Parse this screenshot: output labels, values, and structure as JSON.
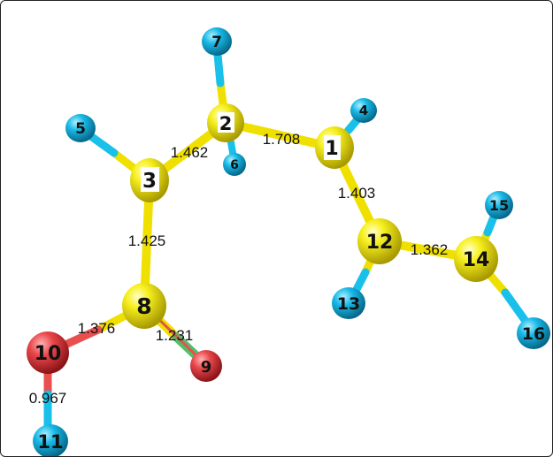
{
  "colors": {
    "carbon": "#f2ea12",
    "hydrogen": "#18b8e6",
    "oxygen": "#e8464a",
    "bond_c_c": "#f0e000",
    "bond_c_h": "#19c0ea",
    "bond_c_o_double": "#4fc06a",
    "bond_o_h": "#e85050"
  },
  "atoms": [
    {
      "id": "1",
      "element": "C",
      "label": "1"
    },
    {
      "id": "2",
      "element": "C",
      "label": "2"
    },
    {
      "id": "3",
      "element": "C",
      "label": "3"
    },
    {
      "id": "4",
      "element": "H",
      "label": "4"
    },
    {
      "id": "5",
      "element": "H",
      "label": "5"
    },
    {
      "id": "6",
      "element": "H",
      "label": "6"
    },
    {
      "id": "7",
      "element": "H",
      "label": "7"
    },
    {
      "id": "8",
      "element": "C",
      "label": "8"
    },
    {
      "id": "9",
      "element": "O",
      "label": "9"
    },
    {
      "id": "10",
      "element": "O",
      "label": "10"
    },
    {
      "id": "11",
      "element": "H",
      "label": "11"
    },
    {
      "id": "12",
      "element": "C",
      "label": "12"
    },
    {
      "id": "13",
      "element": "H",
      "label": "13"
    },
    {
      "id": "14",
      "element": "C",
      "label": "14"
    },
    {
      "id": "15",
      "element": "H",
      "label": "15"
    },
    {
      "id": "16",
      "element": "H",
      "label": "16"
    }
  ],
  "bond_lengths": {
    "c2_c3": "1.462",
    "c1_c2": "1.708",
    "c1_c12": "1.403",
    "c3_c8": "1.425",
    "c12_c14": "1.362",
    "c8_o10": "1.376",
    "c8_o9": "1.231",
    "o10_h11": "0.967"
  }
}
